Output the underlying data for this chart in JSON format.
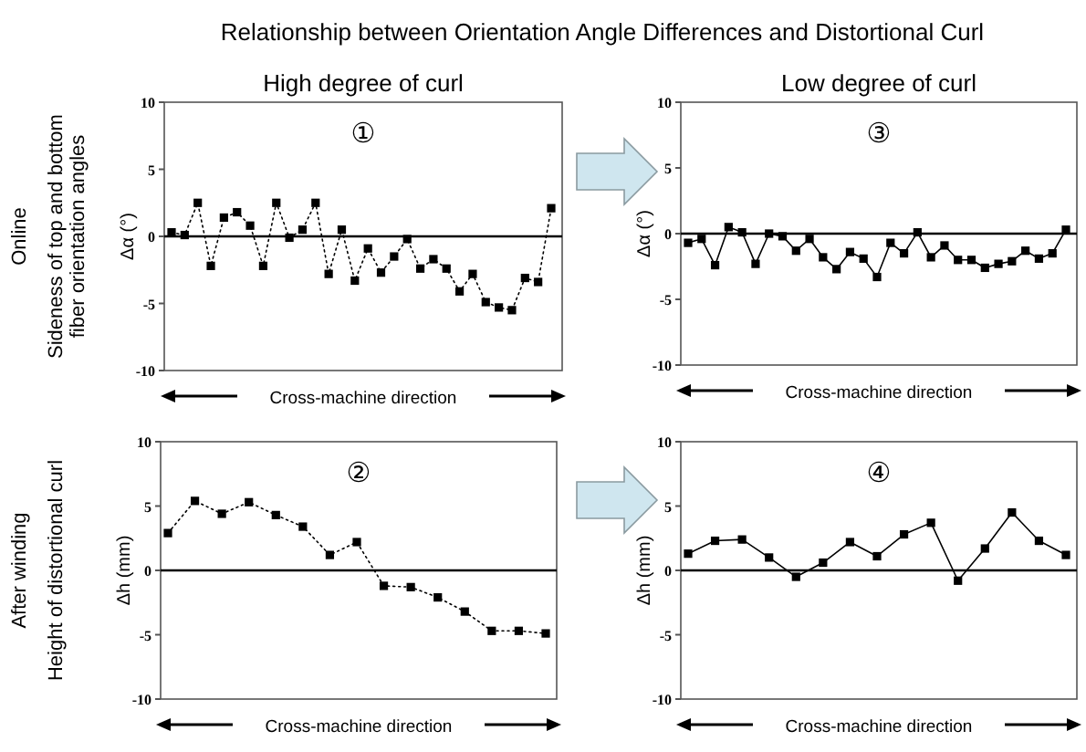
{
  "chart_data": [
    {
      "type": "line",
      "title": "Relationship between Orientation Angle Differences and Distortional Curl",
      "subtitle": "High degree of curl",
      "ylabel": "Δα (°)",
      "xlabel": "Cross-machine direction",
      "annotations": [
        "①",
        "Online",
        "Sideness of top and bottom fiber orientation angles"
      ],
      "categories": [
        null,
        null,
        null,
        null,
        null,
        null,
        null,
        null,
        null,
        null,
        null,
        null,
        null,
        null,
        null,
        null,
        null,
        null,
        null,
        null,
        null,
        null,
        null,
        null,
        null,
        null,
        null,
        null,
        null,
        null
      ],
      "series": [
        {
          "color": "#000000",
          "values": [
            0.3,
            0.1,
            2.5,
            -2.2,
            1.4,
            1.8,
            0.8,
            -2.2,
            2.5,
            -0.1,
            0.5,
            2.5,
            -2.8,
            0.5,
            -3.3,
            -0.9,
            -2.7,
            -1.5,
            -0.2,
            -2.4,
            -1.7,
            -2.4,
            -4.1,
            -2.8,
            -4.9,
            -5.3,
            -5.5,
            -3.1,
            -3.4,
            2.1
          ]
        }
      ],
      "ylim": [
        -10,
        10
      ],
      "yticks": [
        -10,
        -5,
        0,
        5,
        10
      ],
      "ref_lines": [
        {
          "axis": "y",
          "value": 0
        }
      ],
      "marker": "square",
      "line_style": "dotted",
      "grid": false
    },
    {
      "type": "line",
      "subtitle": "Low degree of curl",
      "ylabel": "Δα (°)",
      "xlabel": "Cross-machine direction",
      "annotations": [
        "③"
      ],
      "categories": [
        null,
        null,
        null,
        null,
        null,
        null,
        null,
        null,
        null,
        null,
        null,
        null,
        null,
        null,
        null,
        null,
        null,
        null,
        null,
        null,
        null,
        null,
        null,
        null,
        null,
        null,
        null,
        null,
        null
      ],
      "series": [
        {
          "color": "#000000",
          "values": [
            -0.7,
            -0.4,
            -2.4,
            0.5,
            0.1,
            -2.3,
            0,
            -0.2,
            -1.3,
            -0.4,
            -1.8,
            -2.7,
            -1.4,
            -1.9,
            -3.3,
            -0.7,
            -1.5,
            0.1,
            -1.8,
            -0.9,
            -2.0,
            -2.0,
            -2.6,
            -2.3,
            -2.1,
            -1.3,
            -1.9,
            -1.5,
            0.3
          ]
        }
      ],
      "ylim": [
        -10,
        10
      ],
      "yticks": [
        -10,
        -5,
        0,
        5,
        10
      ],
      "ref_lines": [
        {
          "axis": "y",
          "value": 0
        }
      ],
      "marker": "square",
      "line_style": "solid",
      "grid": false
    },
    {
      "type": "line",
      "ylabel": "Δh (mm)",
      "xlabel": "Cross-machine direction",
      "annotations": [
        "②",
        "After winding",
        "Height of distortional curl"
      ],
      "categories": [
        null,
        null,
        null,
        null,
        null,
        null,
        null,
        null,
        null,
        null,
        null,
        null,
        null,
        null,
        null
      ],
      "series": [
        {
          "color": "#000000",
          "values": [
            2.9,
            5.4,
            4.4,
            5.3,
            4.3,
            3.4,
            1.2,
            2.2,
            -1.2,
            -1.3,
            -2.1,
            -3.2,
            -4.7,
            -4.7,
            -4.9
          ]
        }
      ],
      "ylim": [
        -10,
        10
      ],
      "yticks": [
        -10,
        -5,
        0,
        5,
        10
      ],
      "ref_lines": [
        {
          "axis": "y",
          "value": 0
        }
      ],
      "marker": "square",
      "line_style": "dotted",
      "grid": false
    },
    {
      "type": "line",
      "ylabel": "Δh (mm)",
      "xlabel": "Cross-machine direction",
      "annotations": [
        "④"
      ],
      "categories": [
        null,
        null,
        null,
        null,
        null,
        null,
        null,
        null,
        null,
        null,
        null,
        null,
        null,
        null,
        null
      ],
      "series": [
        {
          "color": "#000000",
          "values": [
            1.3,
            2.3,
            2.4,
            1.0,
            -0.5,
            0.6,
            2.2,
            1.1,
            2.8,
            3.7,
            -0.8,
            1.7,
            4.5,
            2.3,
            1.2
          ]
        }
      ],
      "ylim": [
        -10,
        10
      ],
      "yticks": [
        -10,
        -5,
        0,
        5,
        10
      ],
      "ref_lines": [
        {
          "axis": "y",
          "value": 0
        }
      ],
      "marker": "square",
      "line_style": "solid",
      "grid": false
    }
  ]
}
